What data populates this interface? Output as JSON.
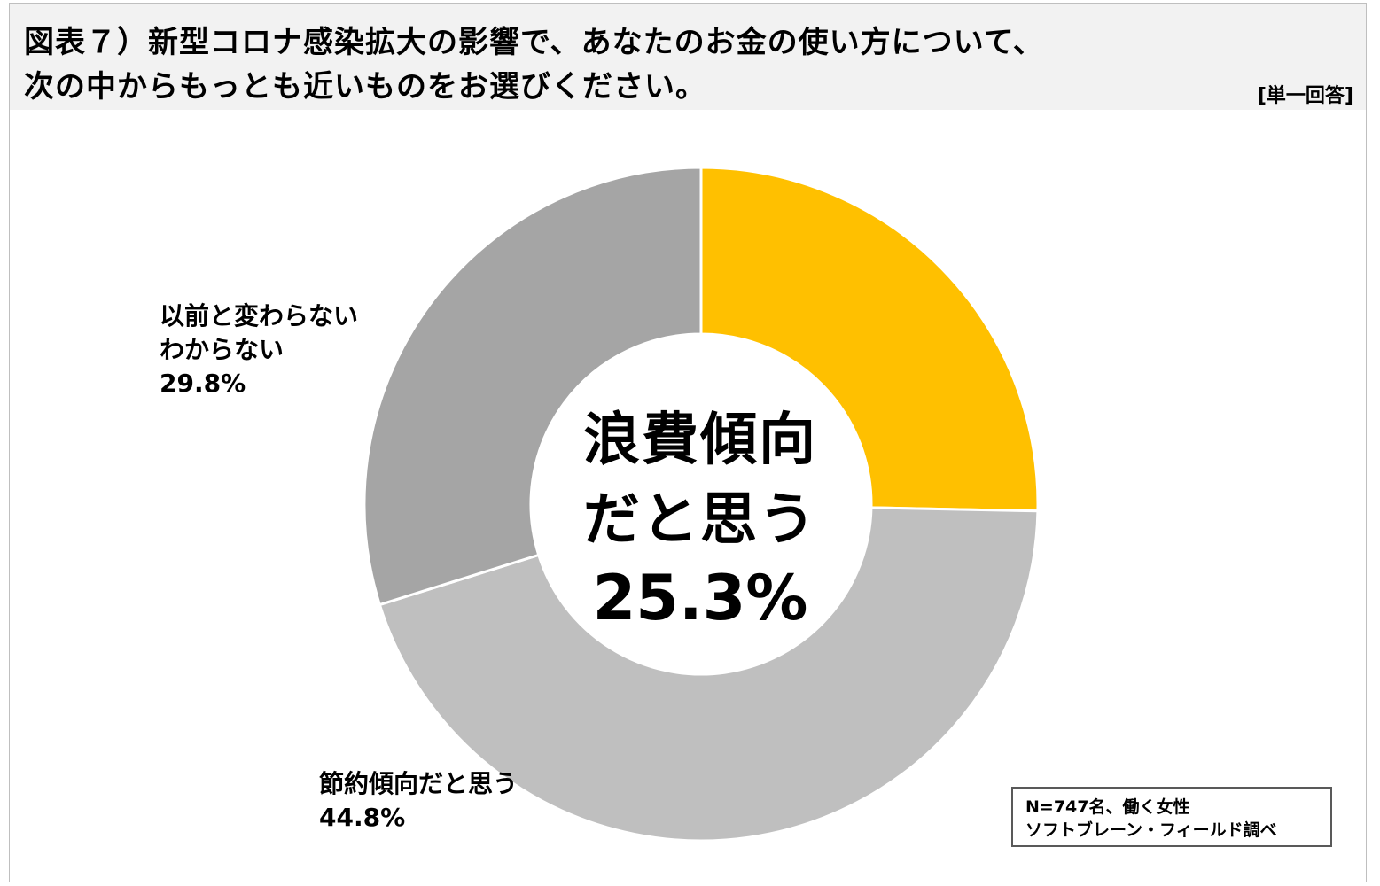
{
  "header": {
    "title_line1": "図表７）新型コロナ感染拡大の影響で、あなたのお金の使い方について、",
    "title_line2": "次の中からもっとも近いものをお選びください。",
    "answer_type": "[単一回答]"
  },
  "chart_data": {
    "type": "pie",
    "donut": true,
    "start_angle_deg": 0,
    "direction": "clockwise",
    "slices": [
      {
        "label_lines": [
          "浪費傾向",
          "だと思う"
        ],
        "value_text": "25.3%",
        "value": 25.3,
        "color": "#FFC000"
      },
      {
        "label_lines": [
          "節約傾向だと思う"
        ],
        "value_text": "44.8%",
        "value": 44.8,
        "color": "#BFBFBF"
      },
      {
        "label_lines": [
          "以前と変わらない",
          "わからない"
        ],
        "value_text": "29.8%",
        "value": 29.8,
        "color": "#A5A5A5"
      }
    ]
  },
  "source": {
    "line1": "N=747名、働く女性",
    "line2": "ソフトブレーン・フィールド調べ"
  }
}
